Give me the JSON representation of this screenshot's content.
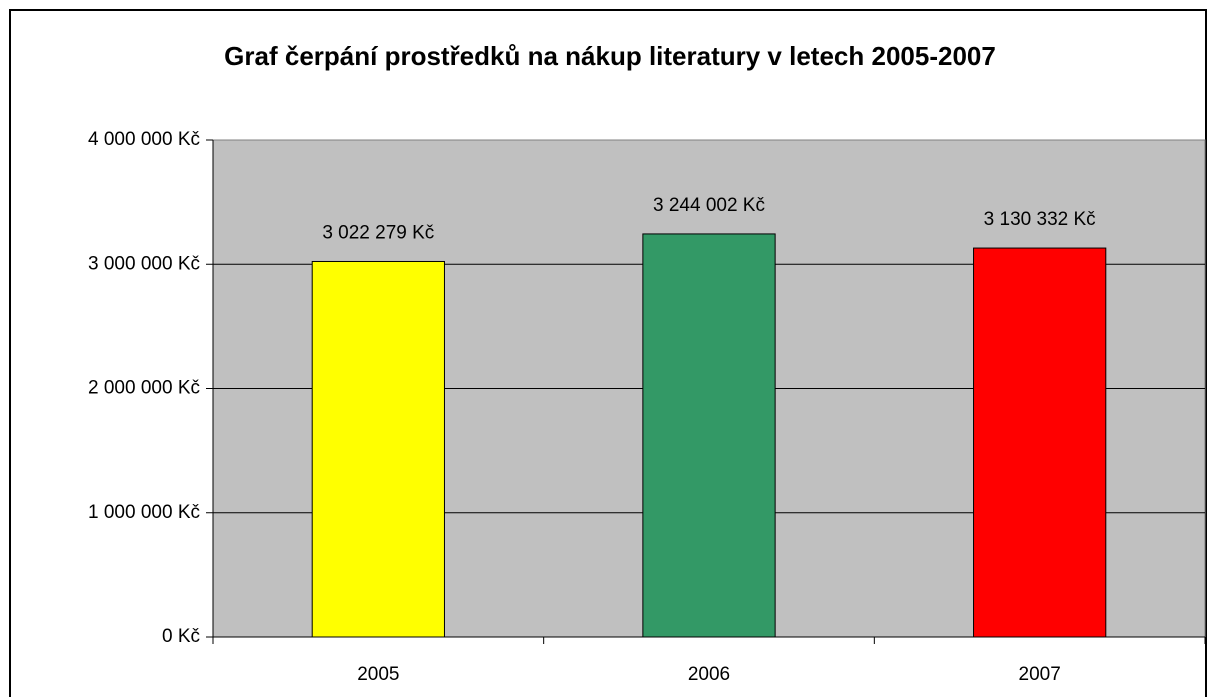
{
  "chart_data": {
    "type": "bar",
    "title": "Graf čerpání prostředků na nákup literatury v letech 2005-2007",
    "categories": [
      "2005",
      "2006",
      "2007"
    ],
    "values": [
      3022279,
      3244002,
      3130332
    ],
    "value_labels": [
      "3 022 279 Kč",
      "3 244 002 Kč",
      "3 130 332 Kč"
    ],
    "colors": [
      "#ffff00",
      "#339966",
      "#ff0000"
    ],
    "ylim": [
      0,
      4000000
    ],
    "yticks": [
      {
        "value": 0,
        "label": "0 Kč"
      },
      {
        "value": 1000000,
        "label": "1 000 000 Kč"
      },
      {
        "value": 2000000,
        "label": "2 000 000 Kč"
      },
      {
        "value": 3000000,
        "label": "3 000 000 Kč"
      },
      {
        "value": 4000000,
        "label": "4 000 000 Kč"
      }
    ],
    "grid": true
  }
}
